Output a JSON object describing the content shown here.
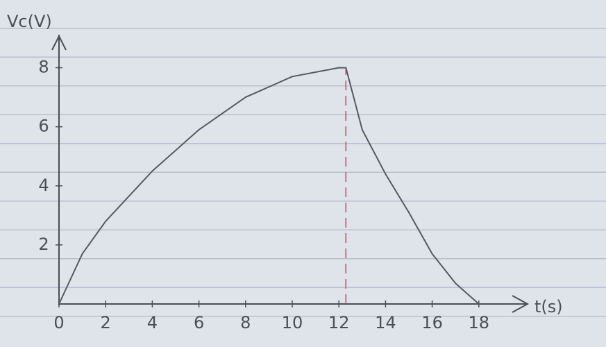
{
  "chart_data": {
    "type": "line",
    "y_label": "Vc(V)",
    "x_label": "t(s)",
    "x": [
      0,
      1,
      2,
      4,
      6,
      8,
      10,
      12,
      12.3,
      13,
      14,
      15,
      16,
      17,
      18
    ],
    "series": [
      {
        "color": "#555a60",
        "values": [
          0,
          1.7,
          2.8,
          4.5,
          5.9,
          7.0,
          7.7,
          8.0,
          8.0,
          5.9,
          4.4,
          3.1,
          1.7,
          0.7,
          0
        ]
      }
    ],
    "xlim": [
      0,
      20
    ],
    "ylim": [
      0,
      9
    ],
    "xticks": [
      0,
      2,
      4,
      6,
      8,
      10,
      12,
      14,
      16,
      18
    ],
    "yticks": [
      2,
      4,
      6,
      8
    ],
    "vline_x": 12.3,
    "vline_color": "#b05060"
  }
}
